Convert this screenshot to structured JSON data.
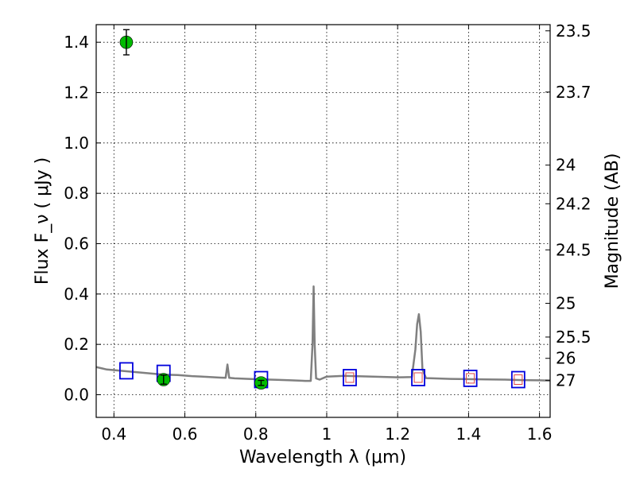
{
  "chart_data": {
    "type": "scatter",
    "xlabel": "Wavelength  λ (μm)",
    "ylabel": "Flux  F_ν  ( μJy )",
    "y2label": "Magnitude (AB)",
    "xlim": [
      0.35,
      1.63
    ],
    "ylim": [
      -0.09,
      1.47
    ],
    "grid": true,
    "x_ticks": [
      "0.4",
      "0.6",
      "0.8",
      "1",
      "1.2",
      "1.4",
      "1.6"
    ],
    "y_ticks": [
      "0.0",
      "0.2",
      "0.4",
      "0.6",
      "0.8",
      "1.0",
      "1.2",
      "1.4"
    ],
    "right_ticks": [
      "23.5",
      "23.7",
      "24",
      "24.2",
      "24.5",
      "25",
      "25.5",
      "26",
      "27"
    ],
    "colors": {
      "spectrum": "#808080",
      "observed": "#00bb00",
      "model": "#0000dd",
      "model_inner": "#dd4444"
    },
    "spectrum": {
      "x": [
        0.35,
        0.38,
        0.42,
        0.46,
        0.5,
        0.54,
        0.58,
        0.62,
        0.66,
        0.7,
        0.715,
        0.72,
        0.725,
        0.74,
        0.78,
        0.82,
        0.86,
        0.9,
        0.94,
        0.955,
        0.96,
        0.963,
        0.966,
        0.97,
        0.98,
        1.0,
        1.05,
        1.1,
        1.15,
        1.2,
        1.24,
        1.25,
        1.255,
        1.26,
        1.265,
        1.27,
        1.28,
        1.3,
        1.35,
        1.4,
        1.45,
        1.5,
        1.55,
        1.6,
        1.63
      ],
      "y": [
        0.11,
        0.1,
        0.095,
        0.09,
        0.085,
        0.08,
        0.078,
        0.074,
        0.071,
        0.068,
        0.067,
        0.12,
        0.067,
        0.065,
        0.063,
        0.061,
        0.059,
        0.057,
        0.055,
        0.055,
        0.2,
        0.43,
        0.2,
        0.065,
        0.06,
        0.072,
        0.075,
        0.073,
        0.071,
        0.069,
        0.07,
        0.18,
        0.28,
        0.32,
        0.25,
        0.1,
        0.066,
        0.065,
        0.063,
        0.062,
        0.061,
        0.06,
        0.058,
        0.057,
        0.056
      ]
    },
    "observed": {
      "x": [
        0.435,
        0.54,
        0.815
      ],
      "y": [
        1.4,
        0.06,
        0.047
      ],
      "err": [
        0.05,
        0.018,
        0.01
      ]
    },
    "model": {
      "x": [
        0.435,
        0.54,
        0.815,
        1.065,
        1.258,
        1.405,
        1.54
      ],
      "y": [
        0.095,
        0.085,
        0.06,
        0.068,
        0.068,
        0.065,
        0.06
      ]
    }
  }
}
